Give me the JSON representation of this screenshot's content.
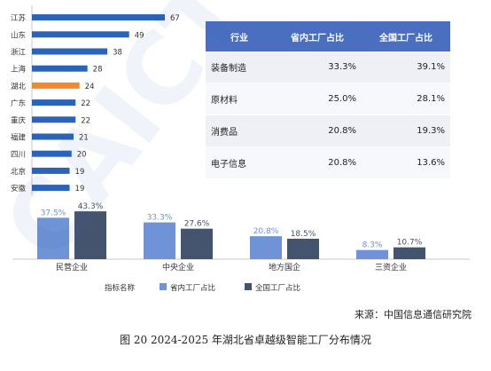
{
  "colors": {
    "bar_blue": "#2a63b9",
    "bar_orange": "#ef8a2e",
    "table_header": "#4a6fc0",
    "series_light": "#6f93d6",
    "series_dark": "#44546e"
  },
  "chart_data": [
    {
      "type": "bar",
      "orientation": "horizontal",
      "categories": [
        "江苏",
        "山东",
        "浙江",
        "上海",
        "湖北",
        "广东",
        "重庆",
        "福建",
        "四川",
        "北京",
        "安徽"
      ],
      "values": [
        67,
        49,
        38,
        28,
        24,
        22,
        22,
        21,
        20,
        19,
        19
      ],
      "highlight": "湖北",
      "highlight_color": "#ef8a2e",
      "title": "",
      "xlabel": "",
      "ylabel": "",
      "xlim": [
        0,
        67
      ]
    },
    {
      "type": "table",
      "columns": [
        "行业",
        "省内工厂占比",
        "全国工厂占比"
      ],
      "rows": [
        [
          "装备制造",
          "33.3%",
          "39.1%"
        ],
        [
          "原材料",
          "25.0%",
          "28.1%"
        ],
        [
          "消费品",
          "20.8%",
          "19.3%"
        ],
        [
          "电子信息",
          "20.8%",
          "13.6%"
        ]
      ]
    },
    {
      "type": "bar",
      "categories": [
        "民营企业",
        "中央企业",
        "地方国企",
        "三资企业"
      ],
      "series": [
        {
          "name": "省内工厂占比",
          "values": [
            37.5,
            33.3,
            20.8,
            8.3
          ],
          "labels": [
            "37.5%",
            "33.3%",
            "20.8%",
            "8.3%"
          ],
          "color": "#6f93d6"
        },
        {
          "name": "全国工厂占比",
          "values": [
            43.3,
            27.6,
            18.5,
            10.7
          ],
          "labels": [
            "43.3%",
            "27.6%",
            "18.5%",
            "10.7%"
          ],
          "color": "#44546e"
        }
      ],
      "legend_title": "指标名称",
      "legend_position": "bottom",
      "ylim": [
        0,
        45
      ]
    }
  ],
  "source": "来源：中国信息通信研究院",
  "caption": "图 20 2024-2025 年湖北省卓越级智能工厂分布情况",
  "watermark_text": "CAICT 中国信通院"
}
